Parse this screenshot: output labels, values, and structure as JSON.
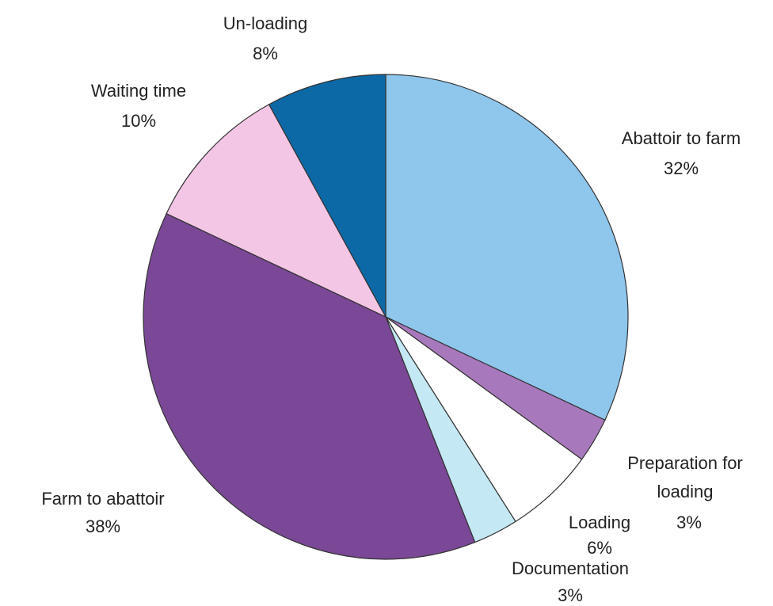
{
  "chart_data": {
    "type": "pie",
    "categories": [
      "Abattoir to farm",
      "Preparation for loading",
      "Loading",
      "Documentation",
      "Farm to abattoir",
      "Waiting time",
      "Un-loading"
    ],
    "values": [
      32,
      3,
      6,
      3,
      38,
      10,
      8
    ],
    "value_labels": [
      "32%",
      "3%",
      "6%",
      "3%",
      "38%",
      "10%",
      "8%"
    ],
    "colors": [
      "#8ec6ec",
      "#a878bc",
      "#ffffff",
      "#c4e8f4",
      "#7a4896",
      "#f4c6e6",
      "#0d68a6"
    ]
  }
}
